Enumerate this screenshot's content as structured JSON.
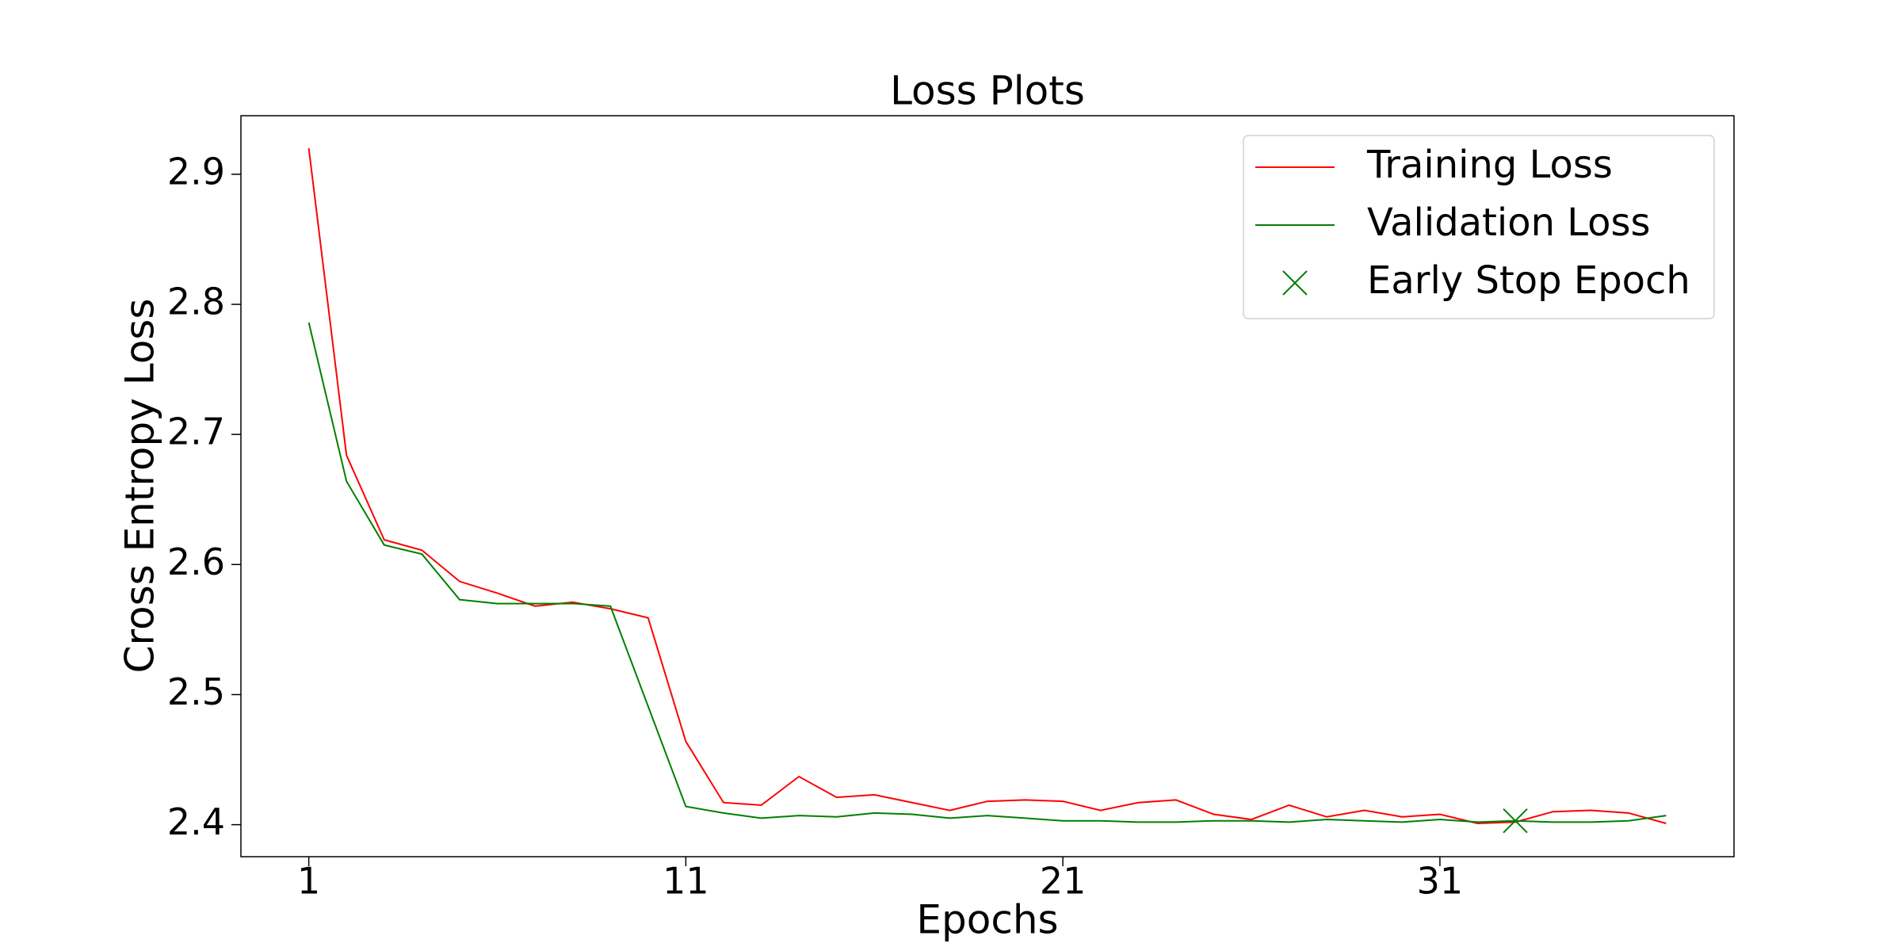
{
  "chart_data": {
    "type": "line",
    "title": "Loss Plots",
    "xlabel": "Epochs",
    "ylabel": "Cross Entropy Loss",
    "x": [
      1,
      2,
      3,
      4,
      5,
      6,
      7,
      8,
      9,
      10,
      11,
      12,
      13,
      14,
      15,
      16,
      17,
      18,
      19,
      20,
      21,
      22,
      23,
      24,
      25,
      26,
      27,
      28,
      29,
      30,
      31,
      32,
      33,
      34,
      35,
      36,
      37
    ],
    "series": [
      {
        "name": "Training Loss",
        "color": "#ff0000",
        "values": [
          2.92,
          2.684,
          2.619,
          2.611,
          2.587,
          2.578,
          2.568,
          2.571,
          2.566,
          2.559,
          2.464,
          2.417,
          2.415,
          2.437,
          2.421,
          2.423,
          2.417,
          2.411,
          2.418,
          2.419,
          2.418,
          2.411,
          2.417,
          2.419,
          2.408,
          2.404,
          2.415,
          2.406,
          2.411,
          2.406,
          2.408,
          2.401,
          2.402,
          2.41,
          2.411,
          2.409,
          2.401
        ]
      },
      {
        "name": "Validation Loss",
        "color": "#008000",
        "values": [
          2.786,
          2.664,
          2.615,
          2.608,
          2.573,
          2.57,
          2.57,
          2.57,
          2.568,
          2.491,
          2.414,
          2.409,
          2.405,
          2.407,
          2.406,
          2.409,
          2.408,
          2.405,
          2.407,
          2.405,
          2.403,
          2.403,
          2.402,
          2.402,
          2.403,
          2.403,
          2.402,
          2.404,
          2.403,
          2.402,
          2.404,
          2.402,
          2.403,
          2.402,
          2.402,
          2.403,
          2.407
        ]
      },
      {
        "name": "Early Stop Epoch",
        "color": "#008000",
        "marker": "x",
        "x": [
          33
        ],
        "values": [
          2.403
        ]
      }
    ],
    "xlim": [
      -0.8,
      38.8
    ],
    "xticks": [
      1,
      11,
      21,
      31
    ],
    "ylim": [
      2.3754,
      2.945
    ],
    "yticks": [
      2.4,
      2.5,
      2.6,
      2.7,
      2.8,
      2.9
    ],
    "legend": "upper right"
  }
}
